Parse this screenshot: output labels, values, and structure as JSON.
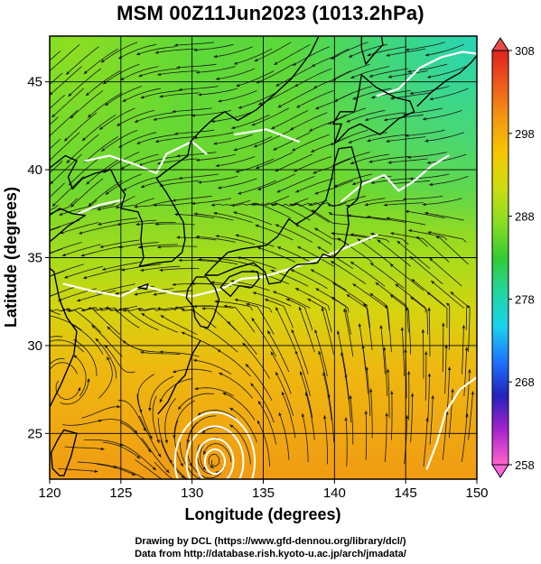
{
  "title": "MSM 00Z11Jun2023 (1013.2hPa)",
  "map": {
    "x_axis": {
      "label": "Longitude (degrees)",
      "range": [
        120,
        150
      ],
      "ticks": [
        120,
        125,
        130,
        135,
        140,
        145,
        150
      ]
    },
    "y_axis": {
      "label": "Latitude  (degrees)",
      "range": [
        22.4,
        47.6
      ],
      "ticks": [
        25,
        30,
        35,
        40,
        45
      ]
    },
    "grid": true,
    "field": "temperature shading with wind streamlines and white contours",
    "colorbar": {
      "ticks": [
        258,
        268,
        278,
        288,
        298,
        308
      ],
      "range": [
        258,
        308
      ],
      "colors": [
        "#ff66cc",
        "#aa22cc",
        "#2222bb",
        "#1e74ff",
        "#19d2ee",
        "#22d6a0",
        "#33cc33",
        "#88dd22",
        "#ccdd11",
        "#f5c800",
        "#f49a10",
        "#ee5c1c",
        "#e02020"
      ]
    }
  },
  "credits": {
    "line1": "Drawing by DCL (https://www.gfd-dennou.org/library/dcl/)",
    "line2": "Data from http://database.rish.kyoto-u.ac.jp/arch/jmadata/"
  }
}
